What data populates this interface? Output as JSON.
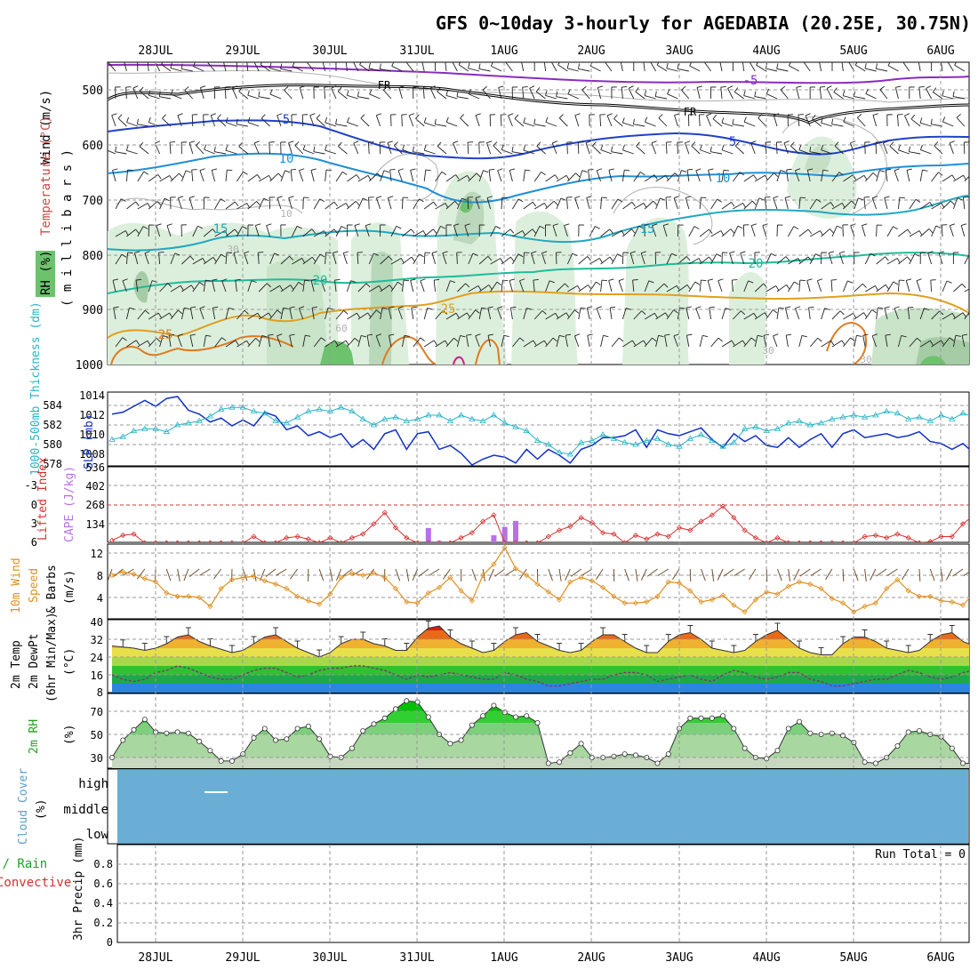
{
  "title": "GFS 0~10day 3-hourly for AGEDABIA (20.25E, 30.75N)",
  "date_labels": [
    "28JUL",
    "29JUL",
    "30JUL",
    "31JUL",
    "1AUG",
    "2AUG",
    "3AUG",
    "4AUG",
    "5AUG",
    "6AUG"
  ],
  "run_total": "Run Total = 0",
  "colors": {
    "frame": "#000000",
    "grid": "#999999",
    "slp": "#1030c8",
    "thickness": "#28b4c8",
    "lifted": "#d83030",
    "cape": "#b870e8",
    "wind": "#e09020",
    "barb": "#705030",
    "rh_fill": "#7cc87c",
    "rh_line": "#208020",
    "cloud": "#6aaed6",
    "freeze": "#000000"
  },
  "panels": {
    "upper": {
      "ylabel_wind": "Wind (m/s)",
      "ylabel_temp": "Temperature (°C)",
      "ylabel_rh": "RH (%)",
      "ylabel_units": "( m i l l i b a r s )",
      "ticks": [
        "500",
        "600",
        "700",
        "800",
        "900",
        "1000"
      ],
      "contour_labels": [
        "-5",
        "FR",
        "FR",
        "5",
        "5",
        "10",
        "10",
        "10",
        "15",
        "15",
        "20",
        "20",
        "25",
        "25",
        "30",
        "30",
        "30",
        "60"
      ]
    },
    "pressure": {
      "ylabel_thick": "1000-500mb Thickness (dm)",
      "ylabel_slp": "SLP (mb)",
      "left_ticks": [
        "584",
        "582",
        "580",
        "578"
      ],
      "right_ticks": [
        "1014",
        "1012",
        "1010",
        "1008"
      ]
    },
    "stability": {
      "ylabel_li": "Lifted Index",
      "ylabel_cape": "CAPE (J/kg)",
      "left_ticks": [
        "-3",
        "0",
        "3",
        "6"
      ],
      "right_ticks": [
        "536",
        "402",
        "268",
        "134"
      ]
    },
    "wind10": {
      "ylabel_1": "10m Wind",
      "ylabel_2": "Speed",
      "ylabel_3": "& Barbs",
      "ylabel_units": "(m/s)",
      "ticks": [
        "12",
        "8",
        "4"
      ]
    },
    "temp2m": {
      "ylabel_1": "2m Temp",
      "ylabel_2": "2m DewPt",
      "ylabel_3": "(6hr Min/Max)",
      "ylabel_units": "(°C)",
      "ticks": [
        "40",
        "32",
        "24",
        "16",
        "8"
      ]
    },
    "rh2m": {
      "ylabel": "2m RH",
      "ylabel_units": "(%)",
      "ticks": [
        "70",
        "50",
        "30"
      ]
    },
    "cloud": {
      "ylabel": "Cloud Cover",
      "ylabel_units": "(%)",
      "ticks": [
        "high",
        "middle",
        "low"
      ]
    },
    "precip": {
      "ylabel_a": "Total / Rain",
      "ylabel_b": "Convective",
      "ylabel_c": "3hr Precip (mm)",
      "ticks": [
        "0.8",
        "0.6",
        "0.4",
        "0.2",
        "0"
      ]
    }
  },
  "chart_data": [
    {
      "type": "line",
      "title": "SLP (mb) and 1000-500mb Thickness (dm)",
      "series": [
        {
          "name": "SLP (mb)",
          "values": [
            1012.2,
            1012.4,
            1013.0,
            1013.6,
            1013.0,
            1013.8,
            1014.0,
            1012.6,
            1012.2,
            1011.4,
            1011.8,
            1011.0,
            1011.6,
            1011.0,
            1012.4,
            1012.0,
            1010.6,
            1011.0,
            1010.0,
            1010.4,
            1009.8,
            1010.2,
            1008.8,
            1009.6,
            1008.6,
            1010.2,
            1010.6,
            1008.6,
            1010.2,
            1010.4,
            1008.6,
            1009.0,
            1008.2,
            1007.0,
            1007.6,
            1008.0,
            1007.8,
            1007.2,
            1008.6,
            1007.6,
            1008.6,
            1008.0,
            1007.2,
            1008.6,
            1009.0,
            1009.8,
            1009.8,
            1010.0,
            1010.6,
            1008.8,
            1010.6,
            1010.2,
            1010.0,
            1010.4,
            1010.8,
            1009.6,
            1008.8,
            1010.2,
            1009.4,
            1010.0,
            1009.0,
            1008.8,
            1009.8,
            1008.8,
            1009.6,
            1010.2,
            1008.8,
            1010.2,
            1010.6,
            1009.8,
            1010.0,
            1010.2,
            1009.8,
            1010.0,
            1010.4,
            1009.4,
            1009.2,
            1008.6,
            1009.2,
            1008.2,
            1009.4,
            1008.4,
            1009.0,
            1007.0,
            1007.8,
            1008.2,
            1007.6,
            1007.4,
            1008.2
          ]
        },
        {
          "name": "1000-500mb Thickness (dm)",
          "values": [
            580.5,
            580.8,
            581.4,
            581.6,
            581.6,
            581.3,
            582.0,
            582.2,
            582.4,
            582.9,
            583.6,
            583.8,
            583.8,
            583.4,
            583.2,
            582.4,
            582.2,
            582.8,
            583.4,
            583.6,
            583.4,
            583.8,
            583.4,
            582.6,
            582.0,
            582.6,
            582.8,
            582.4,
            582.6,
            583.0,
            583.0,
            582.4,
            583.0,
            582.6,
            582.4,
            583.0,
            582.2,
            581.8,
            581.4,
            580.4,
            580.0,
            579.2,
            579.0,
            580.2,
            580.4,
            581.0,
            580.6,
            580.2,
            580.0,
            580.4,
            580.6,
            580.0,
            579.8,
            580.6,
            581.0,
            580.4,
            579.8,
            580.2,
            581.6,
            581.8,
            581.4,
            581.6,
            582.2,
            582.4,
            582.0,
            582.2,
            582.6,
            582.8,
            583.0,
            582.8,
            583.0,
            583.4,
            583.2,
            582.6,
            582.8,
            582.4,
            583.0,
            582.6,
            583.2,
            582.8,
            583.8,
            583.4,
            584.0,
            584.2,
            583.8,
            584.0,
            583.4,
            583.2,
            583.6
          ]
        }
      ],
      "x_start": "27JUL 12UTC",
      "x_step_hours": 3,
      "ylim_slp": [
        1006,
        1014
      ],
      "ylim_thickness": [
        578,
        585
      ]
    },
    {
      "type": "bar",
      "title": "Lifted Index / CAPE (J/kg)",
      "series": [
        {
          "name": "CAPE (J/kg)",
          "values": [
            0,
            0,
            0,
            0,
            0,
            0,
            0,
            0,
            0,
            0,
            0,
            0,
            0,
            0,
            0,
            0,
            0,
            0,
            0,
            0,
            0,
            0,
            0,
            0,
            0,
            0,
            0,
            0,
            0,
            0,
            0,
            0,
            0,
            0,
            0,
            0,
            0,
            0,
            0,
            0,
            0,
            0,
            0,
            0,
            0,
            0,
            0,
            0,
            0,
            0,
            0,
            0,
            0,
            0,
            0,
            0,
            0,
            0,
            0,
            0,
            0,
            0,
            0,
            0,
            0,
            0,
            0,
            0,
            0,
            0,
            0,
            0,
            0,
            0,
            0,
            0,
            0,
            0,
            0,
            0,
            0,
            0,
            0,
            0,
            0,
            0,
            0,
            0,
            0
          ]
        },
        {
          "name": "Lifted Index",
          "values": [
            5.6,
            4.8,
            4.6,
            6,
            6,
            6,
            6,
            6,
            6,
            6,
            6,
            6,
            6,
            5.0,
            6,
            6,
            5.2,
            5.0,
            5.4,
            6,
            5.2,
            6,
            5.2,
            4.6,
            3.0,
            1.2,
            3.6,
            5.2,
            6,
            6,
            6,
            6,
            5.2,
            4.4,
            2.6,
            1.6,
            6,
            6,
            6,
            6,
            5.0,
            4.0,
            3.4,
            2.0,
            2.8,
            4.4,
            4.6,
            6,
            4.8,
            5.4,
            4.6,
            5.0,
            3.6,
            4.0,
            2.6,
            1.6,
            0.2,
            2.0,
            4.0,
            5.2,
            6,
            5.2,
            6,
            6,
            6,
            6,
            6,
            6,
            6,
            5.0,
            4.8,
            5.2,
            4.6,
            5.2,
            6,
            5.8,
            5.0,
            5.0,
            3.0,
            1.6,
            -0.2,
            -1.0,
            0.4,
            0.6,
            2.0,
            3.2,
            3.8,
            3.8,
            3.4
          ]
        }
      ],
      "cape_bars": [
        {
          "index": 29,
          "value": 102
        },
        {
          "index": 30,
          "value": 10
        },
        {
          "index": 35,
          "value": 50
        },
        {
          "index": 36,
          "value": 110
        },
        {
          "index": 37,
          "value": 152
        },
        {
          "index": 79,
          "value": 8
        },
        {
          "index": 80,
          "value": 425
        },
        {
          "index": 81,
          "value": 488
        },
        {
          "index": 82,
          "value": 48
        }
      ],
      "ylim_li": [
        6,
        -6
      ],
      "ylim_cape": [
        0,
        536
      ]
    },
    {
      "type": "line",
      "title": "10m Wind Speed (m/s)",
      "series": [
        {
          "name": "10m Wind Speed (m/s)",
          "values": [
            8.0,
            8.6,
            8.2,
            7.4,
            6.8,
            4.8,
            4.2,
            4.2,
            4.0,
            2.4,
            5.6,
            7.2,
            7.6,
            7.8,
            7.0,
            6.4,
            5.6,
            4.2,
            3.4,
            2.8,
            4.6,
            7.6,
            8.4,
            8.0,
            8.4,
            7.6,
            5.6,
            3.2,
            3.0,
            4.8,
            5.8,
            7.6,
            5.2,
            3.4,
            8.0,
            10.0,
            13.0,
            9.2,
            8.0,
            6.4,
            5.0,
            3.6,
            6.8,
            7.6,
            7.0,
            5.8,
            4.2,
            3.0,
            3.0,
            3.2,
            4.2,
            6.8,
            6.6,
            5.2,
            3.2,
            3.6,
            4.4,
            2.6,
            1.4,
            3.6,
            5.0,
            4.6,
            6.0,
            6.8,
            6.4,
            5.6,
            3.8,
            3.0,
            1.4,
            2.4,
            3.0,
            5.6,
            7.2,
            5.2,
            4.2,
            4.2,
            3.4,
            3.2,
            2.6,
            4.8,
            6.8,
            7.6,
            8.0,
            7.2,
            5.8,
            5.0,
            4.2,
            3.6,
            3.2
          ]
        }
      ],
      "ylim": [
        0,
        13
      ]
    },
    {
      "type": "area",
      "title": "2m Temp / 2m DewPt (°C)",
      "series": [
        {
          "name": "2m Temp (°C)",
          "values": [
            29,
            28.5,
            28,
            27,
            28,
            30,
            33,
            34,
            31,
            29,
            27.5,
            26,
            27,
            30,
            33,
            34,
            31,
            28,
            26,
            24,
            26,
            30,
            32,
            32,
            30,
            29,
            27,
            27,
            33,
            37,
            38,
            33,
            30,
            28,
            26,
            27,
            31,
            34,
            35,
            31,
            29,
            27,
            26,
            27,
            31,
            34,
            34,
            31,
            28,
            26,
            26,
            31,
            34,
            35,
            32,
            28,
            27,
            26,
            27,
            31,
            34,
            36,
            32,
            28,
            26,
            25,
            25,
            30,
            33,
            33,
            31,
            28,
            27,
            26,
            27,
            31,
            34,
            35,
            31,
            29,
            28,
            27,
            26,
            29,
            32,
            34,
            31,
            27,
            26
          ]
        },
        {
          "name": "2m DewPt (°C)",
          "values": [
            16,
            14,
            13,
            14,
            17,
            18,
            20,
            19,
            17,
            15,
            14,
            14,
            16,
            18,
            19,
            19,
            17,
            15,
            16,
            18,
            19,
            19,
            20,
            20,
            19,
            18,
            16,
            14,
            16,
            15,
            16,
            17,
            16,
            15,
            14,
            14,
            17,
            16,
            14,
            13,
            11,
            11,
            12,
            13,
            14,
            14,
            16,
            17,
            17,
            16,
            13,
            14,
            15,
            16,
            14,
            13,
            16,
            18,
            17,
            15,
            14,
            15,
            17,
            17,
            14,
            13,
            11,
            11,
            12,
            13,
            14,
            14,
            16,
            18,
            17,
            15,
            14,
            15,
            17,
            18,
            19,
            18,
            17,
            16,
            18,
            19,
            21,
            20,
            19
          ]
        }
      ],
      "ylim": [
        8,
        40
      ]
    },
    {
      "type": "area",
      "title": "2m RH (%)",
      "series": [
        {
          "name": "2m RH (%)",
          "values": [
            30,
            45,
            54,
            63,
            52,
            51,
            52,
            51,
            44,
            36,
            27,
            27,
            33,
            47,
            55,
            45,
            46,
            55,
            57,
            46,
            31,
            30,
            38,
            53,
            59,
            64,
            72,
            79,
            78,
            65,
            50,
            42,
            45,
            58,
            66,
            75,
            69,
            65,
            66,
            60,
            25,
            26,
            34,
            42,
            30,
            30,
            31,
            33,
            32,
            30,
            25,
            33,
            55,
            64,
            64,
            64,
            66,
            55,
            38,
            30,
            29,
            36,
            55,
            61,
            51,
            50,
            51,
            49,
            43,
            26,
            25,
            30,
            40,
            52,
            53,
            50,
            48,
            38,
            25,
            25,
            28,
            40,
            42,
            42,
            40,
            36,
            30,
            30,
            38
          ]
        },
        {
          "name": "2m RH peak (%)",
          "values": [
            0,
            0,
            0,
            0,
            0,
            0,
            0,
            0,
            0,
            0,
            0,
            0,
            0,
            0,
            0,
            0,
            0,
            0,
            0,
            0,
            0,
            0,
            0,
            0,
            0,
            0,
            0,
            0,
            0,
            0,
            0,
            0,
            0,
            0,
            0,
            0,
            0,
            0,
            0,
            0,
            0,
            0,
            0,
            0,
            0,
            0,
            0,
            0,
            0,
            0,
            0,
            0,
            0,
            0,
            0,
            0,
            0,
            0,
            0,
            0,
            0,
            0,
            0,
            0,
            0,
            0,
            0,
            0,
            0,
            0,
            0,
            0,
            0,
            0,
            0,
            0,
            0,
            0,
            0,
            0,
            0,
            0,
            0,
            0,
            0,
            0,
            0,
            0,
            0
          ]
        }
      ],
      "ylim": [
        20,
        85
      ]
    },
    {
      "type": "heatmap",
      "title": "Cloud Cover (%)",
      "layers": [
        "high",
        "middle",
        "low"
      ],
      "values": [
        [
          100
        ],
        [
          100
        ],
        [
          100
        ]
      ]
    },
    {
      "type": "bar",
      "title": "3hr Precip (mm)",
      "series": [
        {
          "name": "3hr Precip (mm)",
          "values": []
        }
      ],
      "ylim": [
        0,
        1.0
      ]
    }
  ]
}
